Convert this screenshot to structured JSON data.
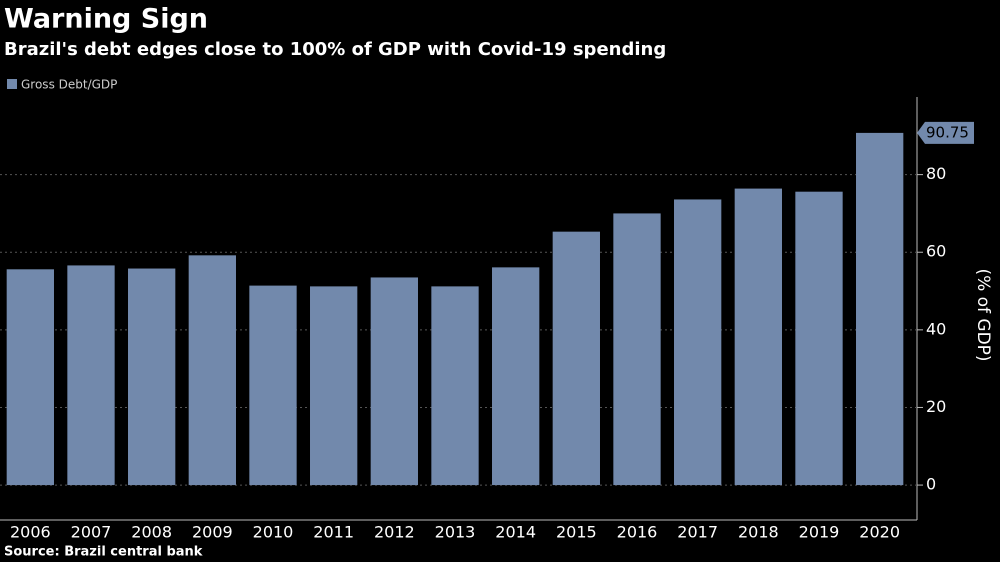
{
  "chart_data": {
    "type": "bar",
    "title": "Warning Sign",
    "subtitle": "Brazil's debt edges close to 100% of GDP with Covid-19 spending",
    "legend": "Gross Debt/GDP",
    "y_axis_label": "(% of GDP)",
    "source": "Source: Brazil central bank",
    "categories": [
      "2006",
      "2007",
      "2008",
      "2009",
      "2010",
      "2011",
      "2012",
      "2013",
      "2014",
      "2015",
      "2016",
      "2017",
      "2018",
      "2019",
      "2020"
    ],
    "values": [
      55.6,
      56.6,
      55.8,
      59.2,
      51.4,
      51.2,
      53.5,
      51.2,
      56.1,
      65.3,
      70.0,
      73.6,
      76.4,
      75.6,
      90.75
    ],
    "color": "#7289ac",
    "ylim": [
      -9,
      100
    ],
    "yticks": [
      0,
      20,
      40,
      60,
      80
    ],
    "grid": true
  }
}
